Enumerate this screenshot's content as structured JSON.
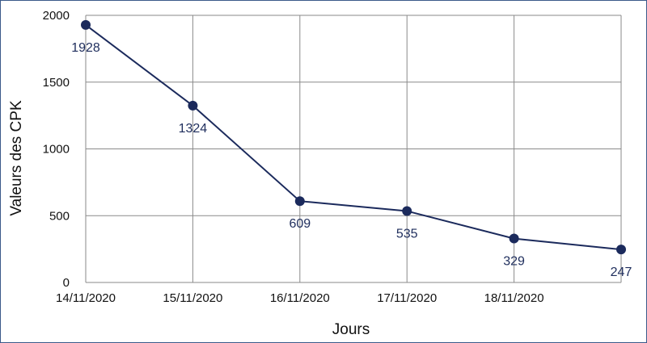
{
  "colors": {
    "series": "#1b2a5c",
    "label": "#1e2d5c",
    "grid": "#8a8a8a",
    "frame": "#3b5a8a"
  },
  "chart_data": {
    "type": "line",
    "title": "",
    "xlabel": "Jours",
    "ylabel": "Valeurs des CPK",
    "x_tick_labels": [
      "14/11/2020",
      "15/11/2020",
      "16/11/2020",
      "17/11/2020",
      "18/11/2020"
    ],
    "y_ticks": [
      0,
      500,
      1000,
      1500,
      2000
    ],
    "ylim": [
      0,
      2000
    ],
    "grid": true,
    "legend": "none",
    "series": [
      {
        "values": [
          1928,
          1324,
          609,
          535,
          329,
          247
        ],
        "labels": [
          "1928",
          "1324",
          "609",
          "535",
          "329",
          "247"
        ]
      }
    ]
  }
}
